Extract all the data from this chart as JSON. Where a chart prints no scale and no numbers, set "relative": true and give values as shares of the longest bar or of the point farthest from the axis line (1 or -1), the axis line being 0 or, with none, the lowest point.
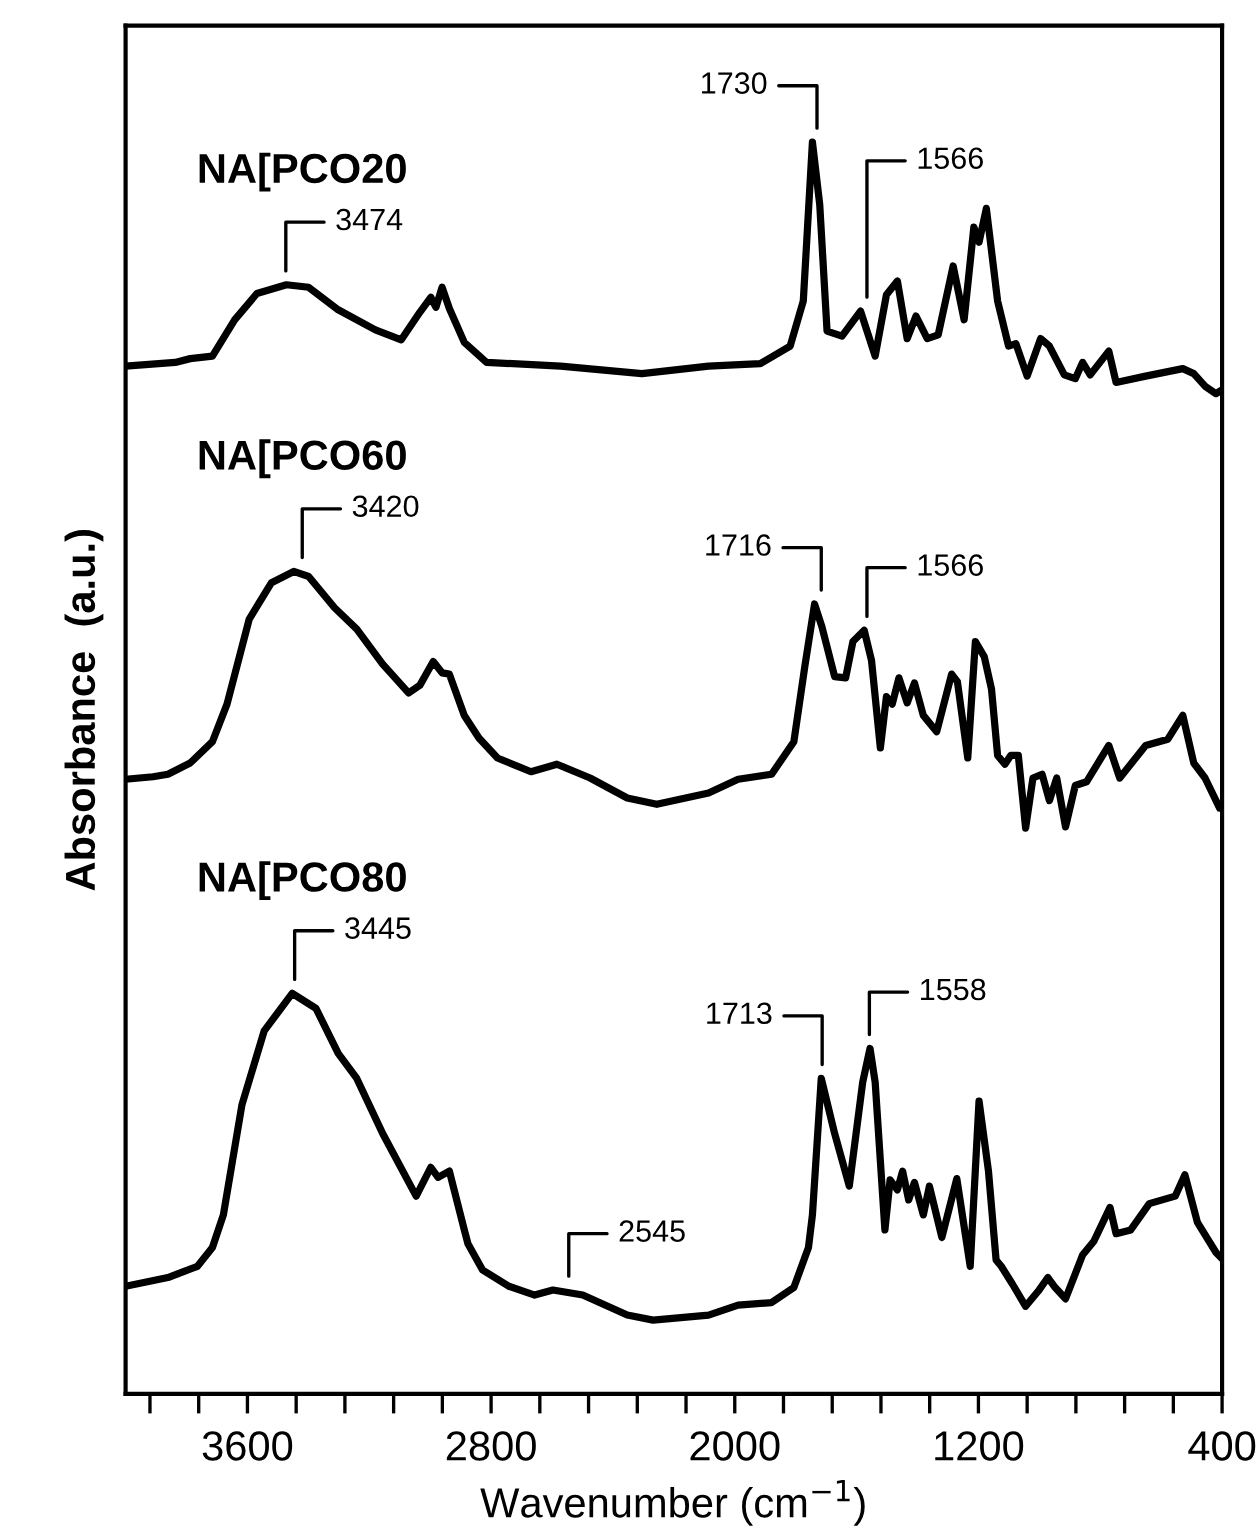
{
  "chart_data": {
    "type": "line",
    "relative": true,
    "xlabel": "Wavenumber (cm$^{−1}$)",
    "ylabel": "Absorbance  (a.u.)",
    "xlim": [
      4000,
      400
    ],
    "xticks": [
      {
        "value": 3920,
        "label": null
      },
      {
        "value": 3760,
        "label": null
      },
      3600,
      {
        "value": 3440,
        "label": null
      },
      {
        "value": 3280,
        "label": null
      },
      {
        "value": 3120,
        "label": null
      },
      {
        "value": 2960,
        "label": null
      },
      2800,
      {
        "value": 2640,
        "label": null
      },
      {
        "value": 2480,
        "label": null
      },
      {
        "value": 2320,
        "label": null
      },
      {
        "value": 2160,
        "label": null
      },
      2000,
      {
        "value": 1840,
        "label": null
      },
      {
        "value": 1680,
        "label": null
      },
      {
        "value": 1520,
        "label": null
      },
      {
        "value": 1360,
        "label": null
      },
      1200,
      {
        "value": 1040,
        "label": null
      },
      {
        "value": 880,
        "label": null
      },
      {
        "value": 720,
        "label": null
      },
      {
        "value": 560,
        "label": null
      },
      400
    ],
    "grid": false,
    "marker": "none",
    "line_style": "solid",
    "series": [
      {
        "name": "NA[PCO20",
        "color": "#000000",
        "x": [
          4000,
          3837,
          3788,
          3715,
          3642,
          3569,
          3472,
          3399,
          3302,
          3180,
          3095,
          3034,
          2998,
          2981,
          2961,
          2937,
          2888,
          2815,
          2572,
          2305,
          2086,
          1916,
          1818,
          1775,
          1745,
          1721,
          1697,
          1648,
          1587,
          1539,
          1502,
          1466,
          1434,
          1405,
          1368,
          1332,
          1283,
          1247,
          1215,
          1198,
          1174,
          1137,
          1101,
          1077,
          1040,
          996,
          967,
          918,
          882,
          858,
          833,
          772,
          748,
          651,
          529,
          493,
          456,
          420,
          400
        ],
        "values": [
          0.821,
          0.824,
          0.827,
          0.829,
          0.858,
          0.879,
          0.886,
          0.884,
          0.866,
          0.85,
          0.842,
          0.864,
          0.876,
          0.868,
          0.884,
          0.867,
          0.84,
          0.824,
          0.821,
          0.815,
          0.821,
          0.823,
          0.837,
          0.873,
          1.0,
          0.95,
          0.849,
          0.845,
          0.865,
          0.829,
          0.878,
          0.889,
          0.843,
          0.861,
          0.843,
          0.846,
          0.901,
          0.858,
          0.932,
          0.92,
          0.947,
          0.873,
          0.837,
          0.839,
          0.813,
          0.843,
          0.837,
          0.814,
          0.811,
          0.824,
          0.814,
          0.833,
          0.808,
          0.813,
          0.819,
          0.815,
          0.805,
          0.799,
          0.802
        ]
      },
      {
        "name": "NA[PCO60",
        "color": "#000000",
        "x": [
          4000,
          3910,
          3861,
          3788,
          3715,
          3667,
          3594,
          3521,
          3448,
          3399,
          3314,
          3241,
          3156,
          3071,
          3034,
          2990,
          2961,
          2937,
          2888,
          2840,
          2779,
          2669,
          2584,
          2475,
          2353,
          2256,
          2086,
          1989,
          1879,
          1806,
          1770,
          1738,
          1714,
          1672,
          1636,
          1612,
          1575,
          1551,
          1522,
          1502,
          1483,
          1461,
          1434,
          1410,
          1381,
          1337,
          1288,
          1269,
          1235,
          1210,
          1181,
          1157,
          1137,
          1113,
          1094,
          1069,
          1045,
          1021,
          991,
          967,
          943,
          914,
          882,
          845,
          772,
          736,
          651,
          578,
          529,
          493,
          456,
          408
        ],
        "values": [
          0.491,
          0.493,
          0.495,
          0.504,
          0.521,
          0.551,
          0.619,
          0.648,
          0.657,
          0.653,
          0.628,
          0.611,
          0.583,
          0.56,
          0.566,
          0.585,
          0.576,
          0.575,
          0.542,
          0.524,
          0.508,
          0.497,
          0.503,
          0.492,
          0.476,
          0.471,
          0.48,
          0.491,
          0.495,
          0.521,
          0.581,
          0.631,
          0.613,
          0.573,
          0.572,
          0.601,
          0.61,
          0.586,
          0.516,
          0.557,
          0.551,
          0.572,
          0.552,
          0.568,
          0.542,
          0.529,
          0.575,
          0.569,
          0.508,
          0.601,
          0.589,
          0.563,
          0.51,
          0.503,
          0.51,
          0.51,
          0.452,
          0.492,
          0.495,
          0.474,
          0.492,
          0.453,
          0.486,
          0.489,
          0.518,
          0.492,
          0.518,
          0.523,
          0.542,
          0.504,
          0.492,
          0.468
        ]
      },
      {
        "name": "NA[PCO80",
        "color": "#000000",
        "x": [
          4000,
          3861,
          3764,
          3715,
          3679,
          3618,
          3545,
          3453,
          3375,
          3302,
          3241,
          3156,
          3046,
          2998,
          2974,
          2937,
          2888,
          2876,
          2828,
          2742,
          2657,
          2597,
          2499,
          2353,
          2268,
          2086,
          1989,
          1879,
          1806,
          1758,
          1745,
          1716,
          1672,
          1624,
          1580,
          1556,
          1539,
          1507,
          1490,
          1466,
          1449,
          1429,
          1410,
          1381,
          1361,
          1320,
          1271,
          1227,
          1198,
          1167,
          1142,
          1125,
          1089,
          1045,
          1004,
          972,
          948,
          914,
          858,
          821,
          768,
          748,
          700,
          639,
          554,
          522,
          481,
          420,
          400
        ],
        "values": [
          0.086,
          0.093,
          0.102,
          0.117,
          0.143,
          0.231,
          0.29,
          0.32,
          0.308,
          0.272,
          0.252,
          0.208,
          0.158,
          0.181,
          0.173,
          0.178,
          0.131,
          0.12,
          0.099,
          0.086,
          0.079,
          0.083,
          0.079,
          0.063,
          0.059,
          0.063,
          0.071,
          0.073,
          0.085,
          0.117,
          0.143,
          0.252,
          0.208,
          0.166,
          0.249,
          0.276,
          0.249,
          0.131,
          0.171,
          0.163,
          0.178,
          0.155,
          0.169,
          0.143,
          0.166,
          0.125,
          0.172,
          0.102,
          0.234,
          0.178,
          0.107,
          0.102,
          0.088,
          0.07,
          0.082,
          0.093,
          0.085,
          0.076,
          0.111,
          0.122,
          0.149,
          0.128,
          0.131,
          0.152,
          0.158,
          0.175,
          0.137,
          0.113,
          0.108
        ]
      }
    ],
    "annotations": [
      {
        "text": "3474",
        "x": 3474,
        "y": 0.886
      },
      {
        "text": "1730",
        "x": 1730,
        "y": 1.0
      },
      {
        "text": "1566",
        "x": 1566,
        "y": 0.865
      },
      {
        "text": "3420",
        "x": 3420,
        "y": 0.657
      },
      {
        "text": "1716",
        "x": 1716,
        "y": 0.631
      },
      {
        "text": "1566",
        "x": 1566,
        "y": 0.61
      },
      {
        "text": "3445",
        "x": 3445,
        "y": 0.32
      },
      {
        "text": "1713",
        "x": 1713,
        "y": 0.252
      },
      {
        "text": "1558",
        "x": 1558,
        "y": 0.276
      },
      {
        "text": "2545",
        "x": 2545,
        "y": 0.083
      }
    ]
  }
}
